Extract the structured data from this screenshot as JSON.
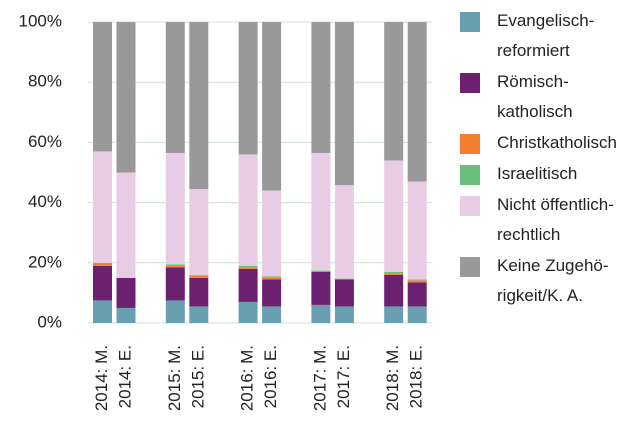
{
  "chart_data": {
    "type": "stacked_bar",
    "categories": [
      "2014: M.",
      "2014: E.",
      "2015: M.",
      "2015: E.",
      "2016: M.",
      "2016: E.",
      "2017: M.",
      "2017: E.",
      "2018: M.",
      "2018: E."
    ],
    "series": [
      {
        "name": "Evangelisch-\nreformiert",
        "color": "#6a9fb1",
        "values": [
          7.5,
          5,
          7.5,
          5.5,
          7,
          5.5,
          6,
          5.5,
          5.5,
          5.5
        ]
      },
      {
        "name": "Römisch-\nkatholisch",
        "color": "#6b2170",
        "values": [
          11.5,
          10,
          11,
          9.5,
          11,
          9,
          11,
          9,
          10.5,
          8
        ]
      },
      {
        "name": "Christkatholisch",
        "color": "#f08030",
        "values": [
          0.8,
          0,
          0.7,
          0.7,
          0.3,
          0.7,
          0.3,
          0.2,
          0.3,
          0.7
        ]
      },
      {
        "name": "Israelitisch",
        "color": "#6cbf7a",
        "values": [
          0.2,
          0,
          0.3,
          0.3,
          0.7,
          0.3,
          0.2,
          0.1,
          0.7,
          0.3
        ]
      },
      {
        "name": "Nicht öffentlich-\nrechtlich",
        "color": "#e8cce4",
        "values": [
          37,
          35,
          37,
          28.5,
          37,
          28.5,
          39,
          31,
          37,
          32.5
        ]
      },
      {
        "name": "Keine Zugehö-\nrigkeit/K. A.",
        "color": "#999999",
        "values": [
          43,
          50,
          43.5,
          55.5,
          44,
          56,
          43.5,
          54.2,
          46,
          53
        ]
      }
    ],
    "ylim": [
      0,
      100
    ],
    "yticks": [
      {
        "value": 0,
        "label": "0%"
      },
      {
        "value": 20,
        "label": "20%"
      },
      {
        "value": 40,
        "label": "40%"
      },
      {
        "value": 60,
        "label": "60%"
      },
      {
        "value": 80,
        "label": "80%"
      },
      {
        "value": 100,
        "label": "100%"
      }
    ],
    "grid": true
  }
}
